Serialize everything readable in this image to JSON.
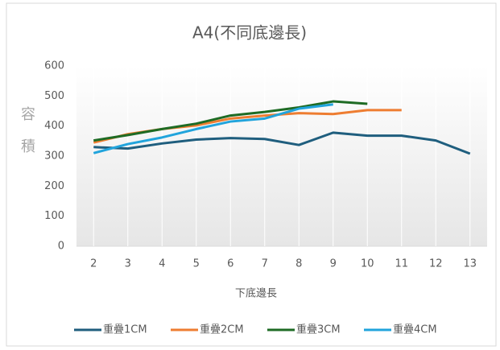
{
  "chart_data": {
    "type": "line",
    "title": "A4(不同底邊長)",
    "x_label": "下底邊長",
    "y_label": "容積",
    "categories": [
      2,
      3,
      4,
      5,
      6,
      7,
      8,
      9,
      10,
      11,
      12,
      13
    ],
    "series": [
      {
        "name": "重疊1CM",
        "color": "#1f5e7e",
        "values": [
          330,
          325,
          342,
          355,
          360,
          357,
          337,
          378,
          368,
          368,
          352,
          308
        ]
      },
      {
        "name": "重疊2CM",
        "color": "#ee7d31",
        "values": [
          345,
          373,
          390,
          402,
          425,
          435,
          443,
          440,
          453,
          453,
          null,
          null
        ]
      },
      {
        "name": "重疊3CM",
        "color": "#1e6b24",
        "values": [
          352,
          370,
          390,
          408,
          435,
          447,
          462,
          482,
          474,
          null,
          null,
          null
        ]
      },
      {
        "name": "重疊4CM",
        "color": "#21a4dc",
        "values": [
          310,
          340,
          362,
          390,
          415,
          425,
          458,
          472,
          null,
          null,
          null,
          null
        ]
      }
    ],
    "ylim": [
      0,
      600
    ],
    "yticks": [
      0,
      100,
      200,
      300,
      400,
      500,
      600
    ],
    "grid": true,
    "legend": "bottom"
  }
}
